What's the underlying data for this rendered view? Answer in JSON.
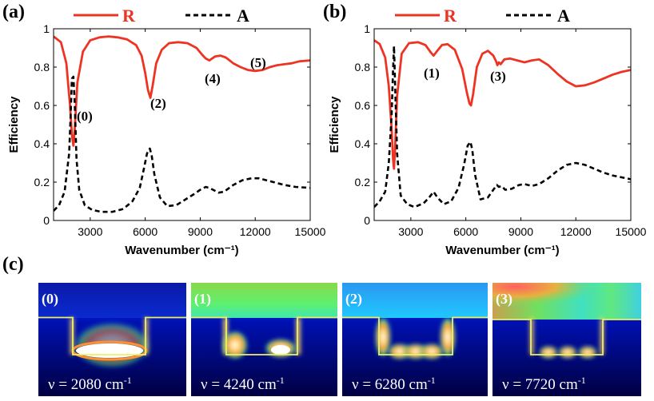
{
  "figure": {
    "panel_a_label": "(a)",
    "panel_b_label": "(b)",
    "panel_c_label": "(c)",
    "legend_r": "R",
    "legend_a": "A"
  },
  "chart_data": [
    {
      "type": "line",
      "id": "a",
      "xlabel": "Wavenumber (cm⁻¹)",
      "ylabel": "Efficiency",
      "xlim": [
        1000,
        15000
      ],
      "ylim": [
        0,
        1
      ],
      "xticks": [
        3000,
        6000,
        9000,
        12000,
        15000
      ],
      "xtick_labels": [
        "3000",
        "6000",
        "9000",
        "12000",
        "15000"
      ],
      "yticks": [
        0,
        0.2,
        0.4,
        0.6,
        0.8,
        1
      ],
      "ytick_labels": [
        "0",
        "0.2",
        "0.4",
        "0.6",
        "0.8",
        "1"
      ],
      "series": [
        {
          "name": "R",
          "color": "#ee3322",
          "style": "solid",
          "x": [
            1000,
            1400,
            1700,
            1900,
            2000,
            2080,
            2150,
            2300,
            2600,
            3000,
            3500,
            4000,
            4500,
            5000,
            5500,
            5800,
            6000,
            6150,
            6280,
            6400,
            6600,
            6900,
            7300,
            7800,
            8300,
            8800,
            9100,
            9300,
            9500,
            9800,
            10100,
            10400,
            10800,
            11200,
            11600,
            12000,
            12400,
            12800,
            13200,
            13600,
            14000,
            14400,
            15000
          ],
          "values": [
            0.96,
            0.93,
            0.82,
            0.6,
            0.45,
            0.39,
            0.47,
            0.72,
            0.88,
            0.94,
            0.955,
            0.96,
            0.955,
            0.945,
            0.915,
            0.86,
            0.77,
            0.68,
            0.64,
            0.7,
            0.82,
            0.89,
            0.925,
            0.93,
            0.925,
            0.9,
            0.865,
            0.845,
            0.835,
            0.855,
            0.86,
            0.85,
            0.82,
            0.8,
            0.785,
            0.78,
            0.785,
            0.8,
            0.81,
            0.815,
            0.82,
            0.83,
            0.835
          ]
        },
        {
          "name": "A",
          "color": "#000000",
          "style": "dashed",
          "x": [
            1000,
            1300,
            1600,
            1850,
            1950,
            2000,
            2080,
            2150,
            2250,
            2400,
            2700,
            3100,
            3600,
            4200,
            4800,
            5300,
            5700,
            5950,
            6100,
            6250,
            6350,
            6500,
            6800,
            7200,
            7700,
            8200,
            8700,
            9000,
            9300,
            9500,
            9700,
            10000,
            10300,
            10800,
            11300,
            11800,
            12200,
            12600,
            13000,
            13600,
            14200,
            15000
          ],
          "values": [
            0.05,
            0.08,
            0.15,
            0.35,
            0.6,
            0.74,
            0.75,
            0.62,
            0.32,
            0.16,
            0.08,
            0.055,
            0.045,
            0.045,
            0.06,
            0.1,
            0.17,
            0.28,
            0.35,
            0.375,
            0.34,
            0.24,
            0.12,
            0.075,
            0.08,
            0.11,
            0.14,
            0.16,
            0.175,
            0.17,
            0.16,
            0.145,
            0.15,
            0.185,
            0.21,
            0.22,
            0.22,
            0.21,
            0.2,
            0.185,
            0.175,
            0.17
          ]
        }
      ],
      "annotations": [
        "(0)",
        "(2)",
        "(4)",
        "(5)"
      ]
    },
    {
      "type": "line",
      "id": "b",
      "xlabel": "Wavenumber (cm⁻¹)",
      "ylabel": "Efficiency",
      "xlim": [
        1000,
        15000
      ],
      "ylim": [
        0,
        1
      ],
      "xticks": [
        3000,
        6000,
        9000,
        12000,
        15000
      ],
      "xtick_labels": [
        "3000",
        "6000",
        "9000",
        "12000",
        "15000"
      ],
      "yticks": [
        0,
        0.2,
        0.4,
        0.6,
        0.8,
        1
      ],
      "ytick_labels": [
        "0",
        "0.2",
        "0.4",
        "0.6",
        "0.8",
        "1"
      ],
      "series": [
        {
          "name": "R",
          "color": "#ee3322",
          "style": "solid",
          "x": [
            1000,
            1300,
            1600,
            1800,
            1950,
            2030,
            2080,
            2130,
            2250,
            2500,
            2900,
            3400,
            3800,
            4100,
            4240,
            4400,
            4700,
            5000,
            5400,
            5800,
            6050,
            6200,
            6280,
            6400,
            6600,
            6900,
            7200,
            7500,
            7650,
            7720,
            7800,
            7900,
            8100,
            8400,
            8800,
            9200,
            9600,
            10000,
            10500,
            11000,
            11500,
            12000,
            12500,
            13000,
            13500,
            14000,
            14500,
            15000
          ],
          "values": [
            0.94,
            0.92,
            0.85,
            0.7,
            0.48,
            0.32,
            0.27,
            0.35,
            0.65,
            0.87,
            0.925,
            0.93,
            0.915,
            0.875,
            0.86,
            0.88,
            0.915,
            0.92,
            0.89,
            0.79,
            0.67,
            0.61,
            0.6,
            0.66,
            0.8,
            0.87,
            0.885,
            0.86,
            0.83,
            0.81,
            0.825,
            0.815,
            0.84,
            0.845,
            0.835,
            0.825,
            0.835,
            0.84,
            0.81,
            0.765,
            0.725,
            0.7,
            0.705,
            0.72,
            0.74,
            0.76,
            0.775,
            0.785
          ]
        },
        {
          "name": "A",
          "color": "#000000",
          "style": "dashed",
          "x": [
            1000,
            1300,
            1600,
            1800,
            1950,
            2030,
            2080,
            2130,
            2250,
            2450,
            2800,
            3200,
            3700,
            4000,
            4240,
            4450,
            4800,
            5200,
            5600,
            5900,
            6100,
            6250,
            6350,
            6500,
            6800,
            7200,
            7500,
            7700,
            7800,
            7950,
            8150,
            8500,
            8900,
            9200,
            9600,
            10000,
            10500,
            11000,
            11500,
            12000,
            12500,
            13000,
            13500,
            14000,
            14500,
            15000
          ],
          "values": [
            0.07,
            0.1,
            0.15,
            0.3,
            0.55,
            0.78,
            0.91,
            0.75,
            0.35,
            0.13,
            0.085,
            0.07,
            0.09,
            0.12,
            0.15,
            0.12,
            0.085,
            0.1,
            0.17,
            0.29,
            0.39,
            0.41,
            0.37,
            0.24,
            0.11,
            0.12,
            0.16,
            0.185,
            0.175,
            0.18,
            0.16,
            0.165,
            0.185,
            0.19,
            0.18,
            0.19,
            0.22,
            0.26,
            0.29,
            0.3,
            0.29,
            0.27,
            0.25,
            0.235,
            0.225,
            0.215
          ]
        }
      ],
      "annotations": [
        "(1)",
        "(3)"
      ]
    }
  ],
  "field_maps": [
    {
      "tag": "(0)",
      "freq": "ν = 2080 cm",
      "unit_exp": "-1"
    },
    {
      "tag": "(1)",
      "freq": "ν = 4240 cm",
      "unit_exp": "-1"
    },
    {
      "tag": "(2)",
      "freq": "ν = 6280 cm",
      "unit_exp": "-1"
    },
    {
      "tag": "(3)",
      "freq": "ν = 7720 cm",
      "unit_exp": "-1"
    }
  ]
}
